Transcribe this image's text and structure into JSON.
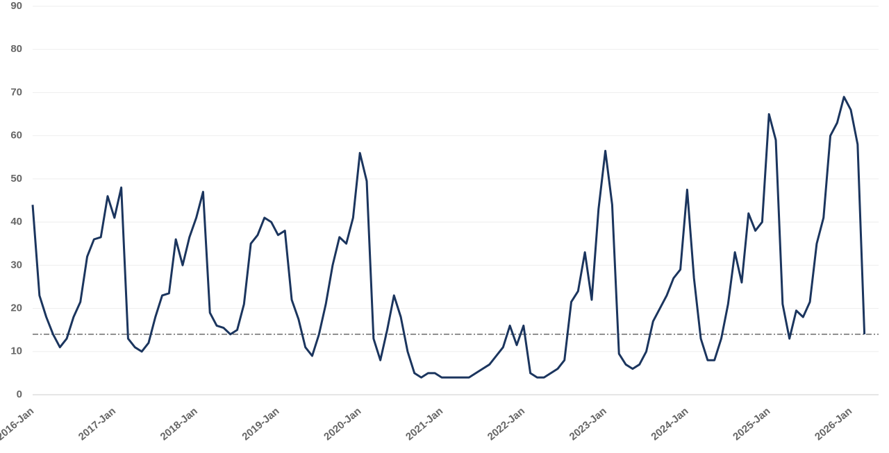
{
  "chart_data": {
    "type": "line",
    "categories": [
      "2016-Jan",
      null,
      null,
      null,
      null,
      null,
      null,
      null,
      null,
      null,
      null,
      null,
      "2017-Jan",
      null,
      null,
      null,
      null,
      null,
      null,
      null,
      null,
      null,
      null,
      null,
      "2018-Jan",
      null,
      null,
      null,
      null,
      null,
      null,
      null,
      null,
      null,
      null,
      null,
      "2019-Jan",
      null,
      null,
      null,
      null,
      null,
      null,
      null,
      null,
      null,
      null,
      null,
      "2020-Jan",
      null,
      null,
      null,
      null,
      null,
      null,
      null,
      null,
      null,
      null,
      null,
      "2021-Jan",
      null,
      null,
      null,
      null,
      null,
      null,
      null,
      null,
      null,
      null,
      null,
      "2022-Jan",
      null,
      null,
      null,
      null,
      null,
      null,
      null,
      null,
      null,
      null,
      null,
      "2023-Jan",
      null,
      null,
      null,
      null,
      null,
      null,
      null,
      null,
      null,
      null,
      null,
      "2024-Jan",
      null,
      null,
      null,
      null,
      null,
      null,
      null,
      null,
      null,
      null,
      null,
      "2025-Jan",
      null,
      null,
      null,
      null,
      null,
      null,
      null,
      null,
      null,
      null,
      null,
      "2026-Jan",
      null,
      null
    ],
    "series": [
      {
        "color": "#1b355e",
        "values": [
          44,
          23,
          18,
          14,
          11,
          13,
          18,
          21.5,
          32,
          36,
          36.5,
          46,
          41,
          48,
          13,
          11,
          10,
          12,
          18,
          23,
          23.5,
          36,
          30,
          36.5,
          41,
          47,
          19,
          16,
          15.5,
          14,
          15,
          21,
          35,
          37,
          41,
          40,
          37,
          38,
          22,
          17.5,
          11,
          9,
          14,
          21,
          30,
          36.5,
          35,
          41,
          56,
          49.5,
          13,
          8,
          15,
          23,
          18,
          10,
          5,
          4,
          5,
          5,
          4,
          4,
          4,
          4,
          4,
          5,
          6,
          7,
          9,
          11,
          16,
          11.5,
          16,
          5,
          4,
          4,
          5,
          6,
          8,
          21.5,
          24,
          33,
          22,
          43,
          56.5,
          44,
          9.5,
          7,
          6,
          7,
          10,
          17,
          20,
          23,
          27,
          29,
          47.5,
          27,
          13,
          8,
          8,
          13,
          21,
          33,
          26,
          42,
          38,
          40,
          65,
          59,
          21,
          13,
          19.5,
          18,
          21.5,
          35,
          41,
          60,
          63,
          69,
          66,
          58,
          14
        ]
      }
    ],
    "reference_line": 14,
    "ylim": [
      0,
      90
    ],
    "yticks": [
      0,
      10,
      20,
      30,
      40,
      50,
      60,
      70,
      80,
      90
    ],
    "grid": true
  }
}
